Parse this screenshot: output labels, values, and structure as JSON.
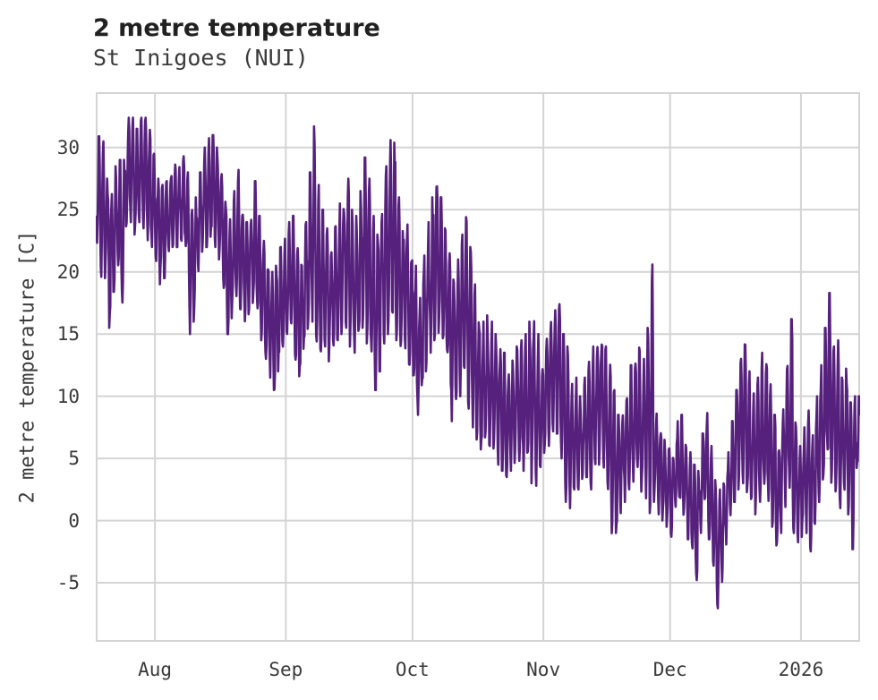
{
  "header": {
    "title": "2 metre temperature",
    "subtitle": "St Inigoes (NUI)"
  },
  "chart_data": {
    "type": "line",
    "title": "2 metre temperature",
    "subtitle": "St Inigoes (NUI)",
    "xlabel": "",
    "ylabel": "2 metre temperature [C]",
    "series_name": "2 metre temperature",
    "line_color": "#56217d",
    "grid_color": "#d4d4d4",
    "grid": true,
    "legend": "none",
    "x_start_date": "2025-07-18",
    "x_end_date": "2026-01-14",
    "x_tick_labels": [
      "Aug",
      "Sep",
      "Oct",
      "Nov",
      "Dec",
      "2026"
    ],
    "x_tick_days": [
      14,
      45,
      75,
      106,
      136,
      167
    ],
    "y_ticks": [
      30,
      25,
      20,
      15,
      10,
      5,
      0,
      -5
    ],
    "ylim": [
      -9.75,
      34.45
    ],
    "sampling_note": "hourly line, captured here as approximate daily min/max envelope read from the plot",
    "days_count": 181,
    "daily_min": [
      22,
      19.6,
      19.5,
      15.5,
      18,
      20,
      15.5,
      23.5,
      24,
      23,
      24,
      23.5,
      22.5,
      21.5,
      20.5,
      19,
      19.5,
      21.5,
      22,
      22,
      22.5,
      21.5,
      15,
      16,
      19,
      21,
      22,
      22.5,
      22,
      21,
      18,
      15,
      16,
      17.5,
      17,
      16,
      16.5,
      17.5,
      16.5,
      14.5,
      13,
      11.5,
      10.5,
      12,
      13,
      14,
      14.5,
      12,
      11.2,
      13,
      15,
      16,
      12.5,
      12,
      14,
      12.8,
      13.5,
      14.5,
      15,
      15.5,
      14,
      13.5,
      14.5,
      15.5,
      14,
      12,
      10.5,
      12,
      14,
      15,
      15.5,
      14.5,
      13,
      13.5,
      12,
      10.5,
      8.5,
      10,
      12,
      13.5,
      14.5,
      15,
      14,
      12.5,
      8,
      9,
      10,
      10.5,
      9,
      7.5,
      6,
      5,
      5.5,
      6,
      5,
      4.5,
      4,
      3.5,
      4,
      4.5,
      4.8,
      4,
      3.5,
      3,
      2.8,
      2.5,
      5,
      6,
      6.5,
      7,
      5,
      1.5,
      1,
      2.5,
      2.5,
      3,
      3.5,
      2.5,
      4,
      4.5,
      3.5,
      1,
      -1.9,
      -1,
      0.6,
      1.5,
      2.5,
      3,
      3.5,
      2,
      1.8,
      0.6,
      1.5,
      0.5,
      0,
      -0.5,
      -1.3,
      0.5,
      1,
      0,
      -1.5,
      -3,
      -5.3,
      -1,
      0.5,
      -1.5,
      -4,
      -7.8,
      -5,
      -2,
      0,
      1.5,
      2.5,
      3,
      2,
      1,
      0.5,
      1.5,
      2,
      1,
      -0.5,
      -2.5,
      -1,
      1,
      2,
      -1,
      -2.3,
      -1.5,
      -1,
      -2.5,
      -1,
      1,
      3,
      4,
      3,
      1.5,
      1,
      2,
      0.5,
      -2.3,
      4
    ],
    "daily_max": [
      30.9,
      30.5,
      27.5,
      27,
      28.5,
      29,
      30,
      32.4,
      32.4,
      31.5,
      32.4,
      32.4,
      32,
      29.5,
      27.5,
      27,
      28,
      28.5,
      29,
      28.5,
      29.3,
      28,
      26,
      26,
      28,
      30,
      30.8,
      31,
      30,
      28.5,
      26,
      24.5,
      26.5,
      28.6,
      26,
      24,
      25,
      27.3,
      24.5,
      22.5,
      21,
      20,
      20.5,
      22,
      23,
      24,
      24.5,
      22.5,
      21.5,
      24,
      28,
      31.7,
      27,
      25,
      23.5,
      22,
      24,
      25.5,
      26.5,
      27.5,
      25,
      24.5,
      26.5,
      29.2,
      27.5,
      24.5,
      23,
      26,
      28.5,
      30.6,
      30.4,
      26,
      24,
      24.5,
      22,
      20.5,
      18,
      21.5,
      24,
      26,
      27.9,
      26,
      23.5,
      21.5,
      20,
      21,
      23,
      24.4,
      22,
      19,
      17,
      16,
      16.5,
      16,
      15,
      14,
      13.5,
      13,
      13.5,
      14,
      14.5,
      15,
      16,
      17,
      15,
      13.5,
      15.5,
      16,
      17,
      17.4,
      15,
      14,
      11,
      11.5,
      10,
      11.5,
      13,
      14,
      15.3,
      15.5,
      14,
      13,
      10.5,
      8.5,
      9,
      10.5,
      12.5,
      14.5,
      14,
      13,
      15.5,
      20.6,
      8.6,
      7.5,
      6.5,
      6,
      5.5,
      8,
      8.5,
      7,
      5.5,
      4.5,
      4,
      7,
      8.9,
      6,
      3.5,
      2.5,
      3,
      5.5,
      8,
      10.5,
      13,
      14.7,
      12,
      10.5,
      11.5,
      13.5,
      13.8,
      11,
      8.5,
      6.5,
      9,
      13,
      16.2,
      8,
      6,
      7.5,
      9,
      7,
      10,
      12.5,
      15.5,
      18.3,
      14,
      14.5,
      11.5,
      12.5,
      9.5,
      10,
      10
    ]
  }
}
